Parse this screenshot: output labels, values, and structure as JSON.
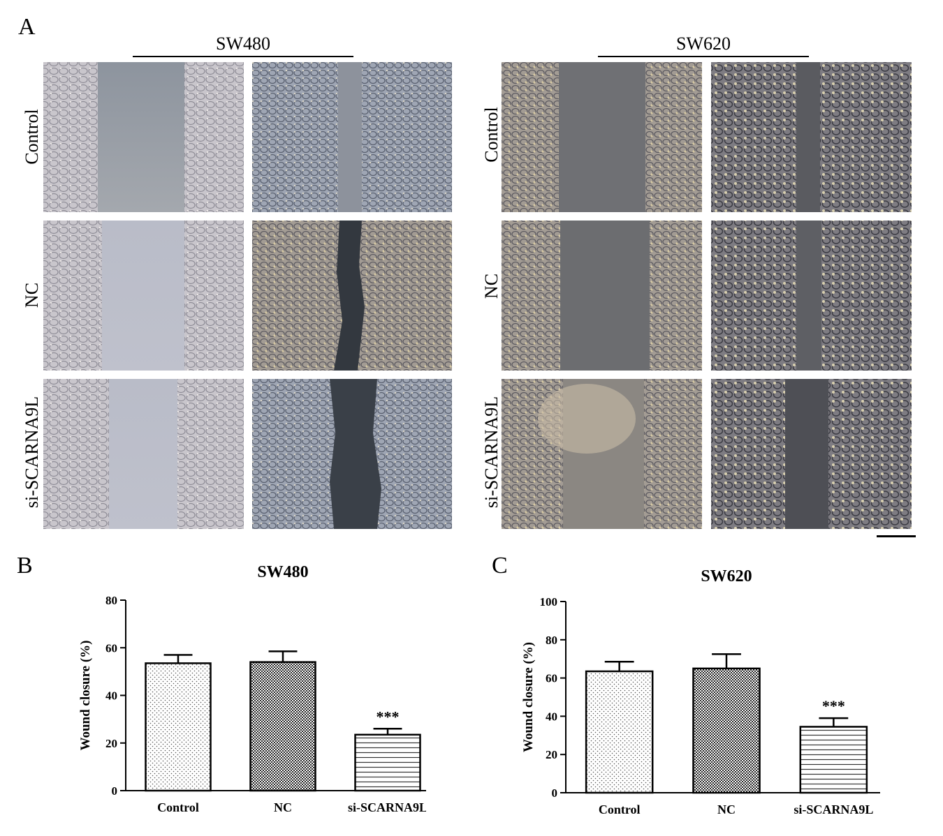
{
  "figure": {
    "panel_a_letter": "A",
    "panel_b_letter": "B",
    "panel_c_letter": "C",
    "groups": [
      {
        "title": "SW480",
        "rows": [
          "Control",
          "NC",
          "si-SCARNA9L"
        ]
      },
      {
        "title": "SW620",
        "rows": [
          "Control",
          "NC",
          "si-SCARNA9L"
        ]
      }
    ]
  },
  "chart_data": [
    {
      "type": "bar",
      "title": "SW480",
      "categories": [
        "Control",
        "NC",
        "si-SCARNA9L"
      ],
      "values": [
        53.5,
        54,
        23.5
      ],
      "errors": [
        3.5,
        4.5,
        2.5
      ],
      "annotations": [
        "",
        "",
        "***"
      ],
      "ylabel": "Wound closure (%)",
      "xlabel": "",
      "ylim": [
        0,
        80
      ],
      "yticks": [
        0,
        20,
        40,
        60,
        80
      ],
      "grid": false,
      "fills": [
        "dots",
        "checker",
        "hlines"
      ]
    },
    {
      "type": "bar",
      "title": "SW620",
      "categories": [
        "Control",
        "NC",
        "si-SCARNA9L"
      ],
      "values": [
        63.5,
        65,
        34.5
      ],
      "errors": [
        5,
        7.5,
        4.5
      ],
      "annotations": [
        "",
        "",
        "***"
      ],
      "ylabel": "Wound closure (%)",
      "xlabel": "",
      "ylim": [
        0,
        100
      ],
      "yticks": [
        0,
        20,
        40,
        60,
        80,
        100
      ],
      "grid": false,
      "fills": [
        "dots",
        "checker",
        "hlines"
      ]
    }
  ]
}
